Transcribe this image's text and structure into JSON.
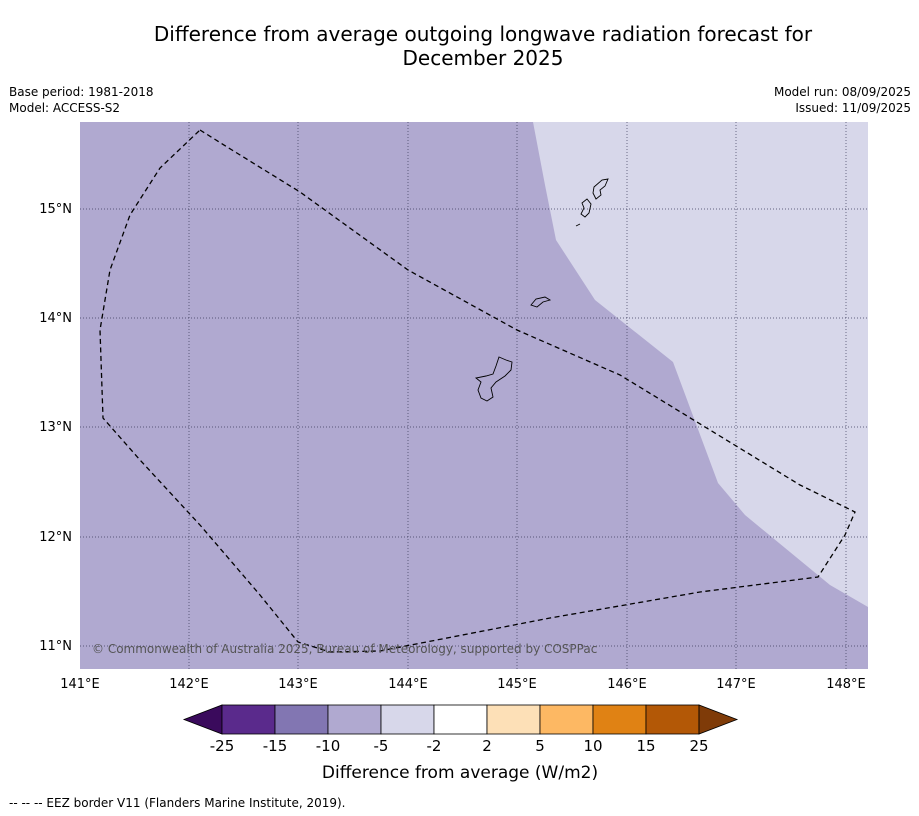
{
  "header": {
    "title_line1": "Difference from average outgoing longwave radiation forecast for",
    "title_line2": "December 2025",
    "base_period": "Base period: 1981-2018",
    "model": "Model: ACCESS-S2",
    "model_run": "Model run: 08/09/2025",
    "issued": "Issued: 11/09/2025"
  },
  "map": {
    "lat_labels": [
      "15°N",
      "14°N",
      "13°N",
      "12°N",
      "11°N"
    ],
    "lon_labels": [
      "141°E",
      "142°E",
      "143°E",
      "144°E",
      "145°E",
      "146°E",
      "147°E",
      "148°E"
    ],
    "copyright": "© Commonwealth of Australia 2025, Bureau of Meteorology, supported by COSPPac",
    "fill_color_main": "#b0a9d0",
    "fill_color_light": "#d7d7ea"
  },
  "legend": {
    "ticks": [
      "-25",
      "-15",
      "-10",
      "-5",
      "-2",
      "2",
      "5",
      "10",
      "15",
      "25"
    ],
    "colors": [
      "#3a0a5c",
      "#5a2a8c",
      "#8276b2",
      "#b0a9d0",
      "#d7d7ea",
      "#ffffff",
      "#fde0b7",
      "#fdb863",
      "#e08214",
      "#b35806",
      "#7f3b08"
    ],
    "label": "Difference from average (W/m2)"
  },
  "footer": {
    "eez_note": "--  --  -- EEZ border V11 (Flanders Marine Institute, 2019)."
  }
}
